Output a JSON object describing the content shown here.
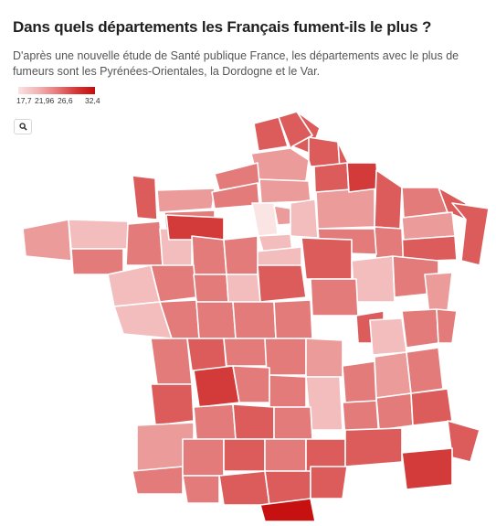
{
  "title": "Dans quels départements les Français fument-ils le plus ?",
  "subtitle": "D'après une nouvelle étude de Santé publique France, les départements avec le plus de fumeurs sont les Pyrénées-Orientales, la Dordogne et le Var.",
  "legend": {
    "ticks": [
      "17,7",
      "21,96",
      "26,6",
      "32,4"
    ],
    "min_color": "#fbe1e1",
    "max_color": "#c40c0c"
  },
  "search": {
    "icon": "search-icon"
  },
  "colors": {
    "c1": "#fbe4e4",
    "c2": "#f4bdbd",
    "c3": "#ec9b9b",
    "c4": "#e47b7b",
    "c5": "#dc5c5c",
    "c6": "#d33a3a",
    "c7": "#c71010"
  }
}
